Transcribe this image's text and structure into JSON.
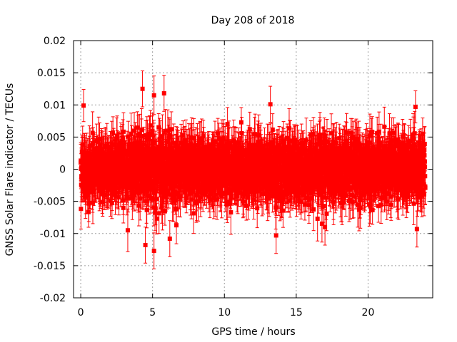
{
  "chart_data": {
    "type": "scatter",
    "title": "Day 208 of 2018",
    "xlabel": "GPS time / hours",
    "ylabel": "GNSS Solar Flare indicator / TECUs",
    "xlim": [
      -0.5,
      24.5
    ],
    "ylim": [
      -0.02,
      0.02
    ],
    "xticks": [
      0,
      5,
      10,
      15,
      20
    ],
    "xtick_labels": [
      "0",
      "5",
      "10",
      "15",
      "20"
    ],
    "yticks": [
      -0.02,
      -0.015,
      -0.01,
      -0.005,
      0,
      0.005,
      0.01,
      0.015,
      0.02
    ],
    "ytick_labels": [
      "-0.02",
      "-0.015",
      "-0.01",
      "-0.005",
      "0",
      "0.005",
      "0.01",
      "0.015",
      "0.02"
    ],
    "grid": true,
    "series": [
      {
        "name": "solar flare indicator",
        "color": "#ff0000",
        "marker": "square",
        "error_bars": true,
        "sample_interval_hours": 0.0083333,
        "x_start": 0,
        "x_end": 23.99,
        "typical_error": 0.0028,
        "notable_points": [
          {
            "x": 4.3,
            "y": 0.0125,
            "err": 0.0028
          },
          {
            "x": 5.1,
            "y": 0.0115,
            "err": 0.003
          },
          {
            "x": 5.8,
            "y": 0.0118,
            "err": 0.0028
          },
          {
            "x": 4.5,
            "y": -0.0118,
            "err": 0.0028
          },
          {
            "x": 5.1,
            "y": -0.0127,
            "err": 0.0028
          },
          {
            "x": 6.2,
            "y": -0.0108,
            "err": 0.0028
          },
          {
            "x": 0.2,
            "y": 0.0099,
            "err": 0.0025
          },
          {
            "x": 13.2,
            "y": 0.0101,
            "err": 0.0028
          },
          {
            "x": 13.6,
            "y": -0.0103,
            "err": 0.0028
          },
          {
            "x": 17.0,
            "y": -0.009,
            "err": 0.0028
          },
          {
            "x": 23.3,
            "y": 0.0097,
            "err": 0.0025
          },
          {
            "x": 23.4,
            "y": -0.0093,
            "err": 0.0028
          }
        ]
      }
    ]
  }
}
